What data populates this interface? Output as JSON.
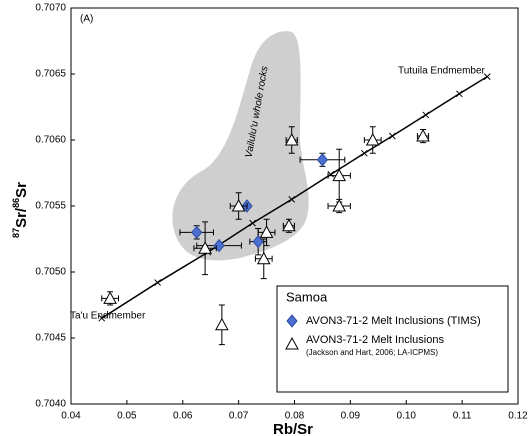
{
  "chart_data": {
    "type": "scatter",
    "panel_label": "(A)",
    "xlabel": "Rb/Sr",
    "ylabel_parts": [
      "87",
      "Sr/",
      "86",
      "Sr"
    ],
    "xlim": [
      0.04,
      0.12
    ],
    "ylim": [
      0.704,
      0.707
    ],
    "xticks": [
      0.04,
      0.05,
      0.06,
      0.07,
      0.08,
      0.09,
      {
        "value": 0.1,
        "label": "0.10"
      },
      0.11,
      0.12
    ],
    "yticks": [
      {
        "value": 0.704,
        "label": "0.7040"
      },
      0.7045,
      {
        "value": 0.705,
        "label": "0.7050"
      },
      0.7055,
      {
        "value": 0.706,
        "label": "0.7060"
      },
      0.7065,
      {
        "value": 0.707,
        "label": "0.7070"
      }
    ],
    "annotations": {
      "region": "Vailulu'u whole rocks",
      "upper_end": "Tutuila Endmember",
      "lower_end": "Ta'u Endmember"
    },
    "legend_title": "Samoa",
    "mixing_line": {
      "color": "#000000",
      "x": [
        0.0455,
        0.0555,
        0.0645,
        0.0725,
        0.0795,
        0.0865,
        0.0925,
        0.0975,
        0.1035,
        0.1095,
        0.1145
      ],
      "values": [
        0.70465,
        0.70492,
        0.70515,
        0.70537,
        0.70555,
        0.70574,
        0.7059,
        0.70603,
        0.70619,
        0.70635,
        0.70648
      ]
    },
    "series": [
      {
        "name": "AVON3-71-2 Melt Inclusions (TIMS)",
        "marker": "diamond",
        "color": "#4a6fd1",
        "x": [
          0.0625,
          0.0665,
          0.0715,
          0.0735,
          0.085
        ],
        "values": [
          0.7053,
          0.7052,
          0.7055,
          0.70523,
          0.70585
        ],
        "x_err": [
          0.003,
          0.004,
          null,
          0.0015,
          0.004
        ],
        "y_err": [
          5e-05,
          null,
          null,
          0.0001,
          5e-05
        ]
      },
      {
        "name": "AVON3-71-2 Melt Inclusions",
        "note": "(Jackson and Hart, 2006; LA-ICPMS)",
        "marker": "triangle",
        "color": "#ffffff",
        "x": [
          0.047,
          0.064,
          0.067,
          0.07,
          0.075,
          0.0745,
          0.079,
          0.0795,
          0.088,
          0.088,
          0.094,
          0.103
        ],
        "values": [
          0.7048,
          0.70518,
          0.7046,
          0.7055,
          0.7053,
          0.7051,
          0.70535,
          0.706,
          0.70573,
          0.7055,
          0.706,
          0.70603
        ],
        "x_err": [
          0.0015,
          0.002,
          null,
          0.0015,
          0.0015,
          0.0015,
          0.001,
          0.001,
          0.002,
          0.002,
          0.0015,
          0.001
        ],
        "y_err": [
          5e-05,
          0.0002,
          0.00015,
          0.0001,
          0.0001,
          0.00015,
          5e-05,
          0.0001,
          0.0002,
          5e-05,
          0.0001,
          5e-05
        ]
      }
    ]
  }
}
